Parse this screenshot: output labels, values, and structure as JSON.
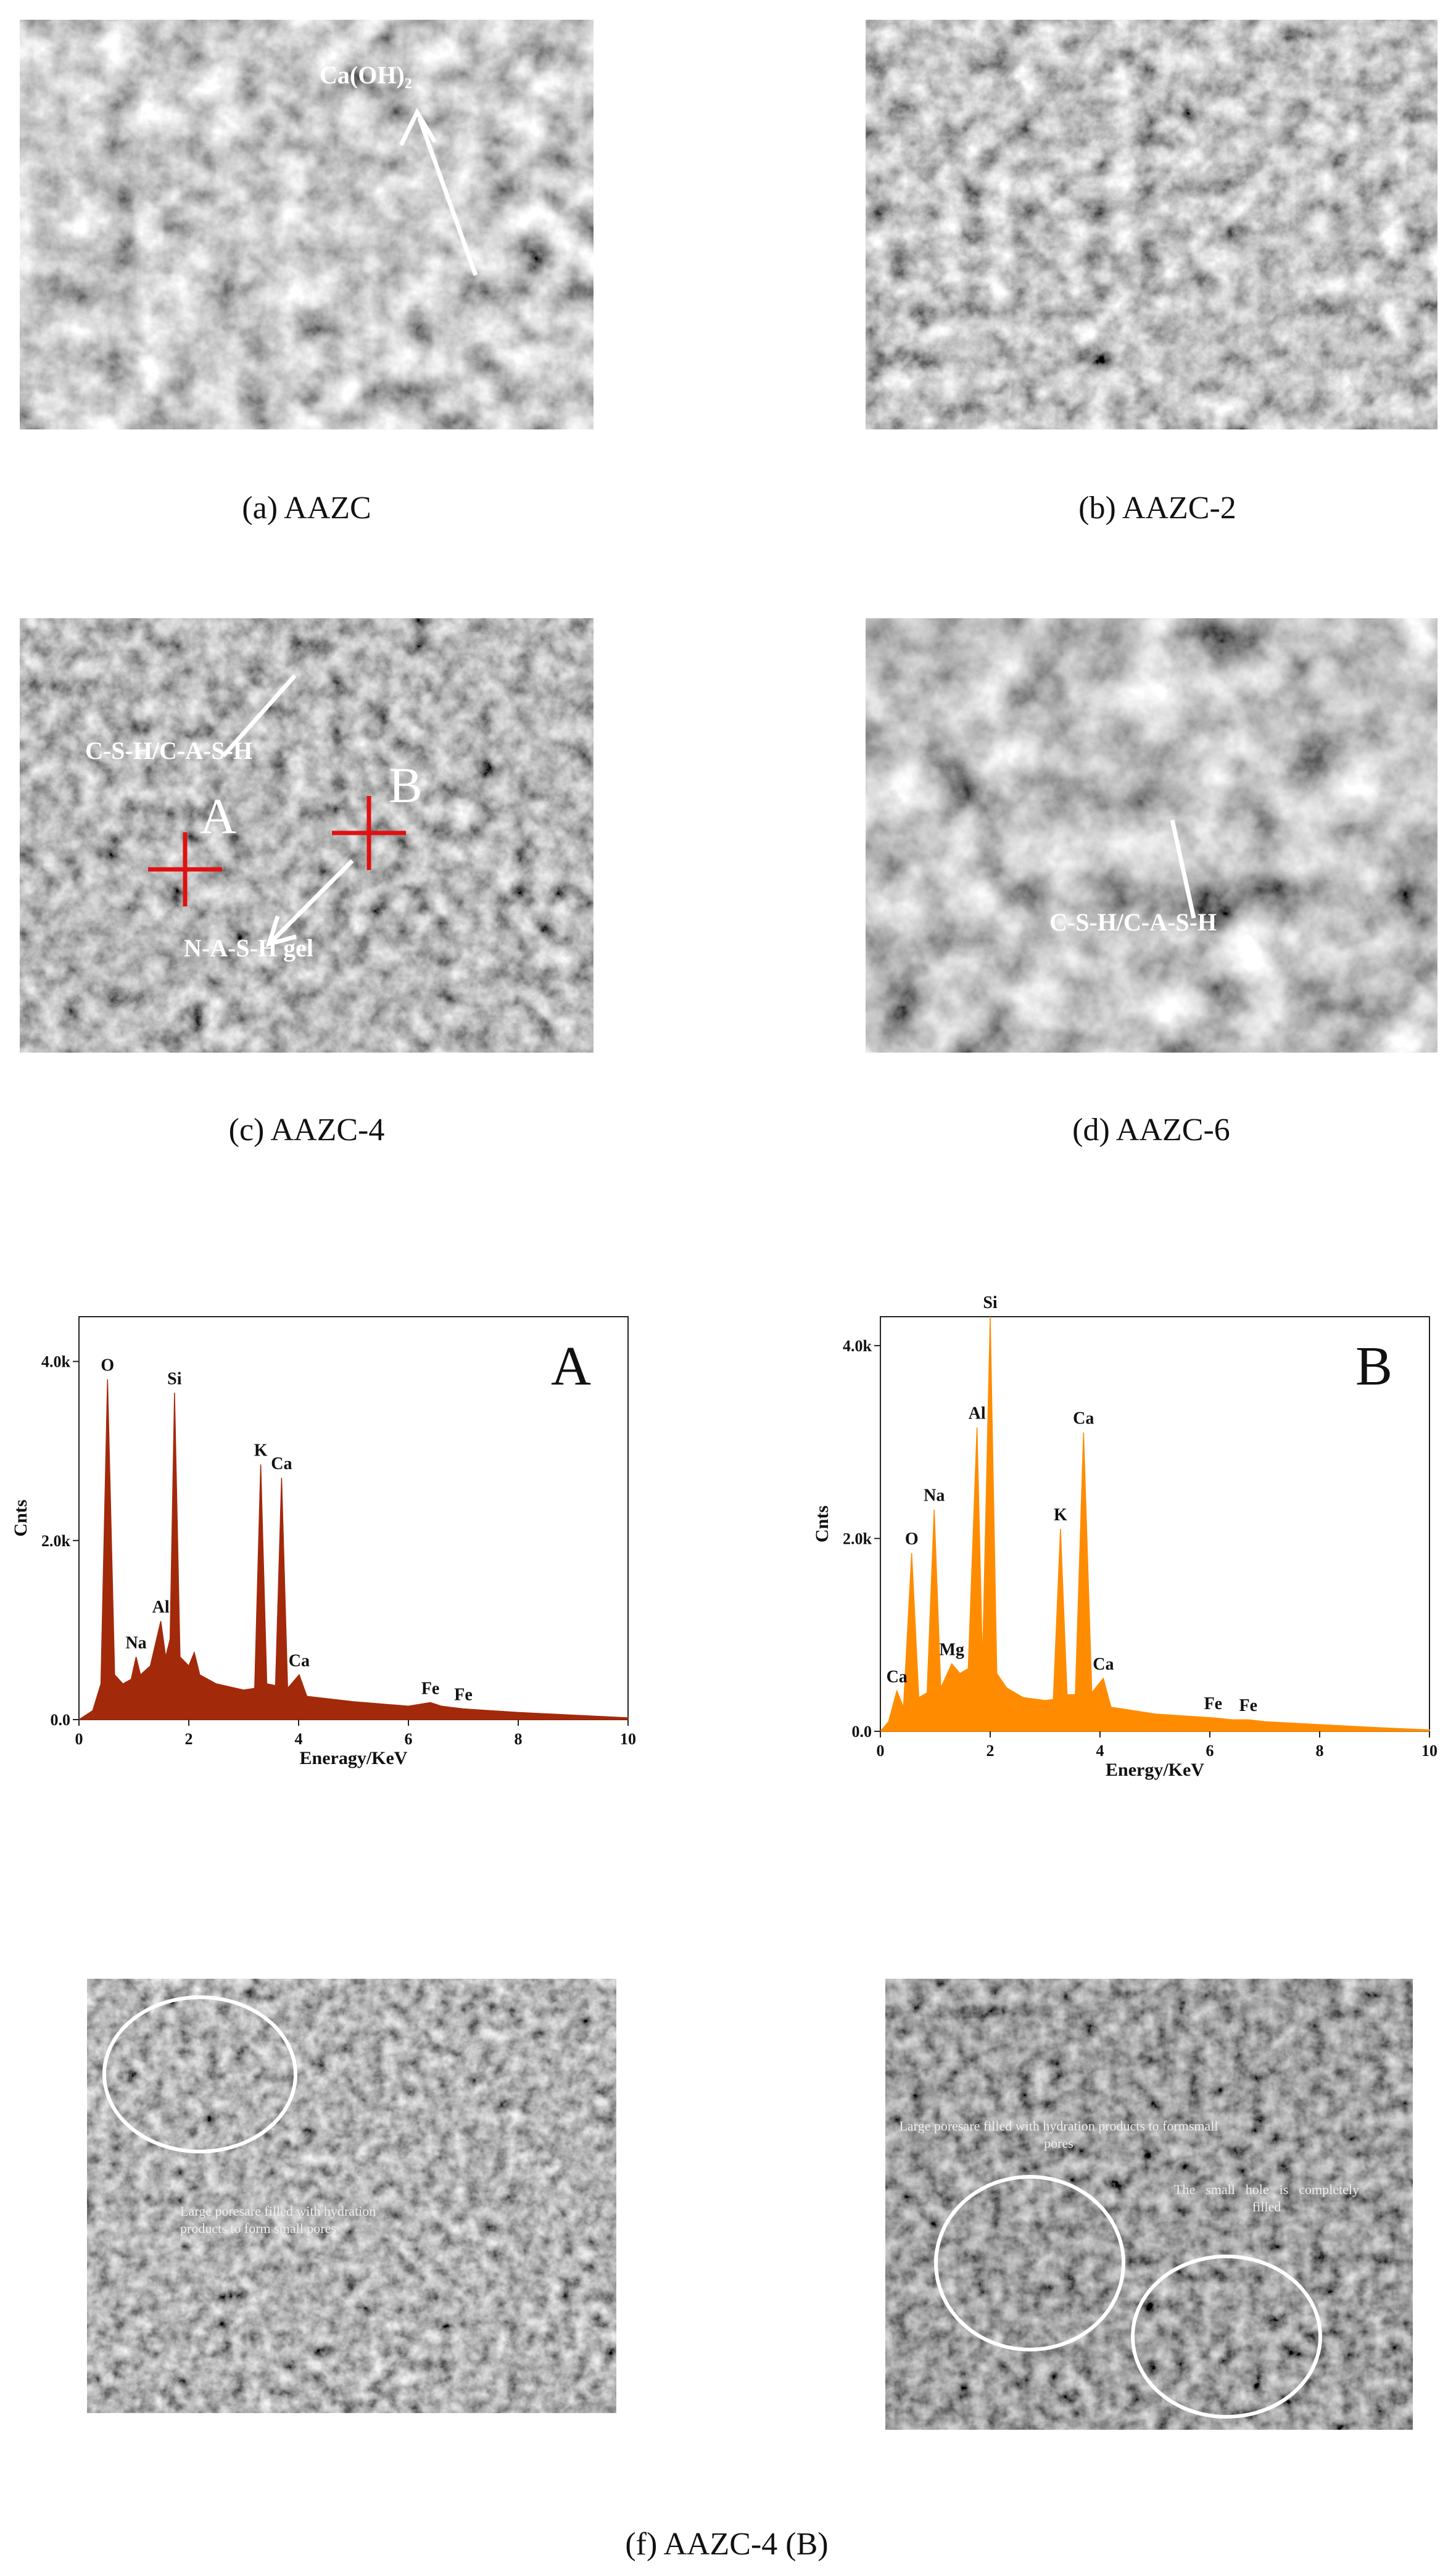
{
  "panels": [
    {
      "caption": "(a) AAZC",
      "annotations": [
        "Ca(OH)₂"
      ]
    },
    {
      "caption": "(b) AAZC-2"
    },
    {
      "caption": "(c) AAZC-4",
      "annotations": [
        "C-S-H/C-A-S-H",
        "A",
        "B",
        "N-A-S-H gel"
      ]
    },
    {
      "caption": "(d) AAZC-6",
      "annotations": [
        "C-S-H/C-A-S-H"
      ]
    }
  ],
  "chart_data": [
    {
      "type": "area",
      "title": "A",
      "xlabel": "Eneragy/KeV",
      "ylabel": "Cnts",
      "color": "#a3290b",
      "x": [
        0,
        0.25,
        0.4,
        0.52,
        0.65,
        0.8,
        0.95,
        1.04,
        1.12,
        1.3,
        1.49,
        1.58,
        1.66,
        1.74,
        1.84,
        2.0,
        2.1,
        2.2,
        2.5,
        3.0,
        3.2,
        3.31,
        3.42,
        3.58,
        3.69,
        3.8,
        4.01,
        4.15,
        5,
        6,
        6.4,
        6.6,
        7,
        8,
        9,
        10
      ],
      "values": [
        0,
        100,
        400,
        3800,
        500,
        400,
        450,
        700,
        500,
        600,
        1100,
        700,
        900,
        3650,
        700,
        600,
        750,
        500,
        400,
        330,
        350,
        2850,
        400,
        380,
        2700,
        350,
        500,
        260,
        200,
        150,
        190,
        150,
        120,
        80,
        50,
        20
      ],
      "point_labels": [
        null,
        null,
        null,
        "O",
        null,
        null,
        null,
        "Na",
        null,
        null,
        "Al",
        null,
        null,
        "Si",
        null,
        null,
        null,
        null,
        null,
        null,
        null,
        "K",
        null,
        null,
        "Ca",
        null,
        "Ca",
        null,
        null,
        null,
        "Fe",
        null,
        "Fe",
        null,
        null,
        null
      ],
      "xlim": [
        0,
        10
      ],
      "xticks": [
        0,
        2,
        4,
        6,
        8,
        10
      ],
      "ylim": [
        0,
        4500
      ],
      "yticks": [
        {
          "value": 0,
          "label": "0.0"
        },
        {
          "value": 2000,
          "label": "2.0k"
        },
        {
          "value": 4000,
          "label": "4.0k"
        }
      ]
    },
    {
      "type": "area",
      "title": "B",
      "xlabel": "Energy/KeV",
      "ylabel": "Cnts",
      "color": "#ff8c00",
      "x": [
        0,
        0.15,
        0.3,
        0.42,
        0.57,
        0.7,
        0.85,
        0.98,
        1.1,
        1.3,
        1.45,
        1.6,
        1.76,
        1.86,
        2.0,
        2.12,
        2.3,
        2.6,
        3.0,
        3.15,
        3.28,
        3.4,
        3.55,
        3.7,
        3.85,
        4.06,
        4.2,
        5,
        6.06,
        6.4,
        6.7,
        7,
        8,
        9,
        10
      ],
      "values": [
        0,
        100,
        420,
        250,
        1850,
        350,
        400,
        2300,
        450,
        700,
        600,
        650,
        3150,
        700,
        4300,
        600,
        450,
        350,
        320,
        330,
        2100,
        380,
        380,
        3100,
        400,
        550,
        250,
        180,
        140,
        120,
        120,
        100,
        70,
        40,
        15
      ],
      "point_labels": [
        null,
        null,
        "Ca",
        null,
        "O",
        null,
        null,
        "Na",
        null,
        "Mg",
        null,
        null,
        "Al",
        null,
        "Si",
        null,
        null,
        null,
        null,
        null,
        "K",
        null,
        null,
        "Ca",
        null,
        "Ca",
        null,
        null,
        "Fe",
        null,
        "Fe",
        null,
        null,
        null,
        null
      ],
      "xlim": [
        0,
        10
      ],
      "xticks": [
        0,
        2,
        4,
        6,
        8,
        10
      ],
      "ylim": [
        0,
        4300
      ],
      "yticks": [
        {
          "value": 0,
          "label": "0.0"
        },
        {
          "value": 2000,
          "label": "2.0k"
        },
        {
          "value": 4000,
          "label": "4.0k"
        }
      ]
    }
  ],
  "bottom_panels": [
    {
      "annotations": [
        "Large poresare filled with hydration products to form small pores"
      ]
    },
    {
      "annotations": [
        "Large poresare filled with hydration products to formsmall pores",
        "The small hole is completely filled"
      ]
    }
  ],
  "caption": "(f) AAZC-4 (B)"
}
